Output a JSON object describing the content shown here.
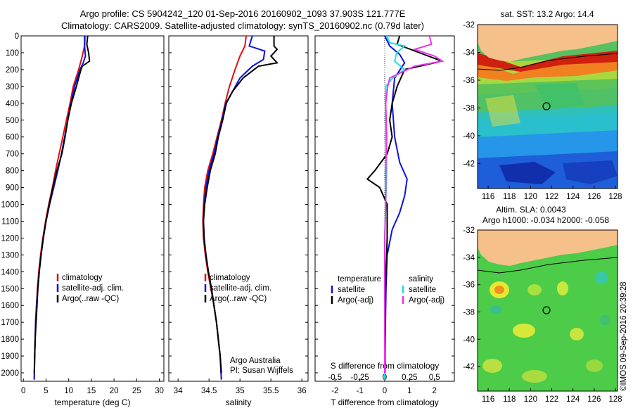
{
  "header": {
    "title_line1": "Argo profile: CS 5904242_120 01-Sep-2016 20160902_1093 37.903S 121.777E",
    "title_line2": "Climatology: CARS2009. Satellite-adjusted climatology: synTS_20160902.nc (0.79d later)"
  },
  "colors": {
    "climatology": "#e01010",
    "satellite": "#1010e0",
    "argo": "#000000",
    "sal_satellite": "#22dddd",
    "sal_argo": "#ee33ee",
    "land": "#f5c08a"
  },
  "chart_data": [
    {
      "id": "temperature",
      "type": "line",
      "xlabel": "temperature (deg C)",
      "ylabel": "",
      "xlim": [
        -0.5,
        31
      ],
      "ylim": [
        2050,
        0
      ],
      "xticks": [
        0,
        5,
        10,
        15,
        20,
        25,
        30
      ],
      "yticks": [
        0,
        100,
        200,
        300,
        400,
        500,
        600,
        700,
        800,
        900,
        1000,
        1100,
        1200,
        1300,
        1400,
        1500,
        1600,
        1700,
        1800,
        1900,
        2000
      ],
      "legend": {
        "position": "lower-middle",
        "entries": [
          "climatology",
          "satellite-adj. clim.",
          "Argo(..raw -QC)"
        ]
      },
      "series": [
        {
          "name": "climatology",
          "color": "#e01010",
          "points": [
            [
              13.6,
              0
            ],
            [
              13.5,
              60
            ],
            [
              13.0,
              120
            ],
            [
              12.2,
              200
            ],
            [
              11.0,
              300
            ],
            [
              10.3,
              400
            ],
            [
              9.5,
              500
            ],
            [
              8.7,
              600
            ],
            [
              7.9,
              700
            ],
            [
              7.1,
              800
            ],
            [
              6.4,
              900
            ],
            [
              5.6,
              1000
            ],
            [
              4.9,
              1100
            ],
            [
              4.3,
              1200
            ],
            [
              3.8,
              1300
            ],
            [
              3.4,
              1400
            ],
            [
              3.1,
              1500
            ],
            [
              2.9,
              1600
            ],
            [
              2.7,
              1700
            ],
            [
              2.6,
              1800
            ],
            [
              2.5,
              1900
            ],
            [
              2.4,
              2040
            ]
          ]
        },
        {
          "name": "satellite-adj. clim.",
          "color": "#1010e0",
          "points": [
            [
              13.5,
              0
            ],
            [
              13.5,
              60
            ],
            [
              13.7,
              120
            ],
            [
              13.2,
              160
            ],
            [
              12.5,
              200
            ],
            [
              11.3,
              300
            ],
            [
              10.5,
              400
            ],
            [
              9.8,
              500
            ],
            [
              9.1,
              600
            ],
            [
              8.4,
              700
            ],
            [
              7.6,
              800
            ],
            [
              6.7,
              900
            ],
            [
              5.8,
              1000
            ],
            [
              5.0,
              1100
            ],
            [
              4.4,
              1200
            ],
            [
              3.9,
              1300
            ],
            [
              3.5,
              1400
            ],
            [
              3.2,
              1500
            ],
            [
              2.9,
              1600
            ],
            [
              2.7,
              1700
            ],
            [
              2.6,
              1800
            ],
            [
              2.5,
              1900
            ],
            [
              2.4,
              2040
            ]
          ]
        },
        {
          "name": "Argo(..raw -QC)",
          "color": "#000000",
          "points": [
            [
              14.2,
              0
            ],
            [
              14.0,
              50
            ],
            [
              14.4,
              100
            ],
            [
              14.6,
              150
            ],
            [
              13.0,
              180
            ],
            [
              12.7,
              200
            ],
            [
              11.7,
              300
            ],
            [
              10.6,
              400
            ],
            [
              9.8,
              500
            ],
            [
              9.2,
              600
            ],
            [
              8.5,
              700
            ],
            [
              7.4,
              800
            ],
            [
              6.5,
              900
            ],
            [
              5.7,
              1000
            ],
            [
              5.0,
              1100
            ],
            [
              4.4,
              1200
            ],
            [
              3.9,
              1300
            ],
            [
              3.5,
              1400
            ],
            [
              3.2,
              1500
            ],
            [
              3.0,
              1600
            ],
            [
              2.8,
              1700
            ],
            [
              2.6,
              1800
            ],
            [
              2.5,
              1900
            ],
            [
              2.4,
              2000
            ]
          ]
        }
      ]
    },
    {
      "id": "salinity",
      "type": "line",
      "xlabel": "salinity",
      "ylabel": "",
      "xlim": [
        33.85,
        36.1
      ],
      "ylim": [
        2050,
        0
      ],
      "xticks": [
        34,
        34.5,
        35,
        35.5,
        36
      ],
      "xticklabels": [
        "34",
        "34.5",
        "35",
        "35.5",
        "36"
      ],
      "yticks": [
        0,
        100,
        200,
        300,
        400,
        500,
        600,
        700,
        800,
        900,
        1000,
        1100,
        1200,
        1300,
        1400,
        1500,
        1600,
        1700,
        1800,
        1900,
        2000
      ],
      "legend": {
        "position": "lower-middle",
        "entries": [
          "climatology",
          "satellite-adj. clim.",
          "Argo(..raw -QC)"
        ]
      },
      "annotation": [
        "Argo Australia",
        "PI: Susan Wijffels"
      ],
      "series": [
        {
          "name": "climatology",
          "color": "#e01010",
          "points": [
            [
              35.1,
              0
            ],
            [
              35.08,
              60
            ],
            [
              35.0,
              120
            ],
            [
              34.92,
              200
            ],
            [
              34.83,
              300
            ],
            [
              34.76,
              400
            ],
            [
              34.7,
              500
            ],
            [
              34.63,
              600
            ],
            [
              34.56,
              700
            ],
            [
              34.48,
              800
            ],
            [
              34.43,
              900
            ],
            [
              34.41,
              1000
            ],
            [
              34.4,
              1100
            ],
            [
              34.41,
              1200
            ],
            [
              34.44,
              1300
            ],
            [
              34.48,
              1400
            ],
            [
              34.53,
              1500
            ],
            [
              34.58,
              1600
            ],
            [
              34.62,
              1700
            ],
            [
              34.65,
              1800
            ],
            [
              34.68,
              1900
            ],
            [
              34.7,
              2040
            ]
          ]
        },
        {
          "name": "satellite-adj. clim.",
          "color": "#1010e0",
          "points": [
            [
              35.2,
              0
            ],
            [
              35.15,
              60
            ],
            [
              35.4,
              90
            ],
            [
              35.38,
              140
            ],
            [
              35.2,
              180
            ],
            [
              35.0,
              250
            ],
            [
              34.85,
              350
            ],
            [
              34.77,
              400
            ],
            [
              34.71,
              500
            ],
            [
              34.64,
              600
            ],
            [
              34.58,
              700
            ],
            [
              34.5,
              800
            ],
            [
              34.45,
              900
            ],
            [
              34.42,
              1000
            ],
            [
              34.41,
              1100
            ],
            [
              34.42,
              1200
            ],
            [
              34.45,
              1300
            ],
            [
              34.49,
              1400
            ],
            [
              34.54,
              1500
            ],
            [
              34.58,
              1600
            ],
            [
              34.62,
              1700
            ],
            [
              34.65,
              1800
            ],
            [
              34.68,
              1900
            ],
            [
              34.7,
              2040
            ]
          ]
        },
        {
          "name": "Argo(..raw -QC)",
          "color": "#000000",
          "points": [
            [
              35.55,
              0
            ],
            [
              35.55,
              60
            ],
            [
              35.6,
              80
            ],
            [
              35.5,
              120
            ],
            [
              35.6,
              160
            ],
            [
              35.3,
              180
            ],
            [
              35.05,
              250
            ],
            [
              34.88,
              330
            ],
            [
              34.78,
              400
            ],
            [
              34.72,
              500
            ],
            [
              34.65,
              600
            ],
            [
              34.6,
              700
            ],
            [
              34.52,
              800
            ],
            [
              34.47,
              900
            ],
            [
              34.43,
              1000
            ],
            [
              34.41,
              1100
            ],
            [
              34.42,
              1200
            ],
            [
              34.45,
              1300
            ],
            [
              34.49,
              1400
            ],
            [
              34.54,
              1500
            ],
            [
              34.58,
              1600
            ],
            [
              34.62,
              1700
            ],
            [
              34.65,
              1800
            ],
            [
              34.68,
              1900
            ],
            [
              34.7,
              2000
            ]
          ]
        }
      ]
    },
    {
      "id": "difference",
      "type": "line",
      "xlabel": "T difference from climatology",
      "xlabel_top": "S difference from climatology",
      "ylabel": "",
      "xlim": [
        -2.8,
        2.8
      ],
      "ylim": [
        2050,
        0
      ],
      "xticks": [
        -2,
        -1,
        0,
        1,
        2
      ],
      "xticklabels": [
        "-2",
        "-1",
        "0",
        "1",
        "2"
      ],
      "xticks_top": [
        -0.5,
        -0.25,
        0,
        0.25,
        0.5
      ],
      "xticklabels_top": [
        "-0.5",
        "-0.25",
        "0",
        "0.25",
        "0.5"
      ],
      "yticks": [
        0,
        100,
        200,
        300,
        400,
        500,
        600,
        700,
        800,
        900,
        1000,
        1100,
        1200,
        1300,
        1400,
        1500,
        1600,
        1700,
        1800,
        1900,
        2000
      ],
      "legend": {
        "position": "middle",
        "titles": [
          "temperature",
          "salinity"
        ],
        "entries": [
          "satellite",
          "Argo(-adj)",
          "satellite",
          "Argo(-adj)"
        ]
      },
      "series": [
        {
          "name": "temperature satellite",
          "color": "#1010e0",
          "points": [
            [
              0.0,
              0
            ],
            [
              0.2,
              60
            ],
            [
              0.6,
              110
            ],
            [
              0.8,
              160
            ],
            [
              0.4,
              250
            ],
            [
              0.3,
              400
            ],
            [
              0.4,
              600
            ],
            [
              0.6,
              750
            ],
            [
              0.9,
              850
            ],
            [
              0.8,
              950
            ],
            [
              0.6,
              1050
            ],
            [
              0.3,
              1150
            ],
            [
              0.1,
              1300
            ],
            [
              0.05,
              1500
            ],
            [
              0.02,
              1800
            ],
            [
              0,
              2040
            ]
          ]
        },
        {
          "name": "temperature Argo(-adj)",
          "color": "#000000",
          "points": [
            [
              0.6,
              0
            ],
            [
              0.5,
              50
            ],
            [
              1.4,
              100
            ],
            [
              2.3,
              150
            ],
            [
              0.8,
              200
            ],
            [
              0.5,
              300
            ],
            [
              0.3,
              400
            ],
            [
              0.2,
              500
            ],
            [
              0.3,
              600
            ],
            [
              0.1,
              700
            ],
            [
              -0.4,
              800
            ],
            [
              -0.7,
              850
            ],
            [
              -0.2,
              900
            ],
            [
              0.1,
              1000
            ],
            [
              0.1,
              1200
            ],
            [
              0.05,
              1400
            ],
            [
              0.02,
              1600
            ],
            [
              0.01,
              2000
            ]
          ]
        },
        {
          "name": "salinity satellite",
          "color": "#22dddd",
          "points": [
            [
              0.02,
              0
            ],
            [
              0.05,
              40
            ],
            [
              0.2,
              60
            ],
            [
              0.12,
              100
            ],
            [
              0.1,
              150
            ],
            [
              0.2,
              200
            ],
            [
              0.08,
              250
            ],
            [
              0.01,
              300
            ],
            [
              0.01,
              400
            ],
            [
              0.01,
              600
            ],
            [
              0.02,
              800
            ],
            [
              0.01,
              1000
            ],
            [
              0,
              1200
            ],
            [
              0,
              1500
            ],
            [
              0,
              2040
            ]
          ]
        },
        {
          "name": "salinity Argo(-adj)",
          "color": "#ee33ee",
          "points": [
            [
              0.45,
              0
            ],
            [
              0.47,
              50
            ],
            [
              0.3,
              80
            ],
            [
              0.5,
              120
            ],
            [
              0.58,
              150
            ],
            [
              0.3,
              180
            ],
            [
              0.05,
              250
            ],
            [
              0.03,
              300
            ],
            [
              0.01,
              400
            ],
            [
              0.02,
              600
            ],
            [
              0.01,
              800
            ],
            [
              0.01,
              1000
            ],
            [
              0,
              1200
            ],
            [
              0,
              1500
            ],
            [
              0,
              2000
            ]
          ]
        }
      ]
    }
  ],
  "maps": [
    {
      "id": "sst-map",
      "title": "sat. SST: 13.2 Argo: 14.4",
      "xticks": [
        116,
        118,
        120,
        122,
        124,
        126,
        128
      ],
      "yticks": [
        -32,
        -34,
        -36,
        -38,
        -40,
        -42
      ],
      "xlim": [
        115,
        128.2
      ],
      "ylim": [
        -43.8,
        -32
      ],
      "profile_location": [
        121.777,
        -37.903
      ]
    },
    {
      "id": "sla-map",
      "title_line1": "Altim. SLA: 0.0043",
      "title_line2": "Argo h1000: -0.034 h2000: -0.058",
      "xticks": [
        116,
        118,
        120,
        122,
        124,
        126,
        128
      ],
      "yticks": [
        -32,
        -34,
        -36,
        -38,
        -40,
        -42
      ],
      "xlim": [
        115,
        128.2
      ],
      "ylim": [
        -43.8,
        -32
      ],
      "profile_location": [
        121.777,
        -37.903
      ]
    }
  ],
  "footer": {
    "credit": "©IMOS 09-Sep-2016 20:39:28"
  }
}
